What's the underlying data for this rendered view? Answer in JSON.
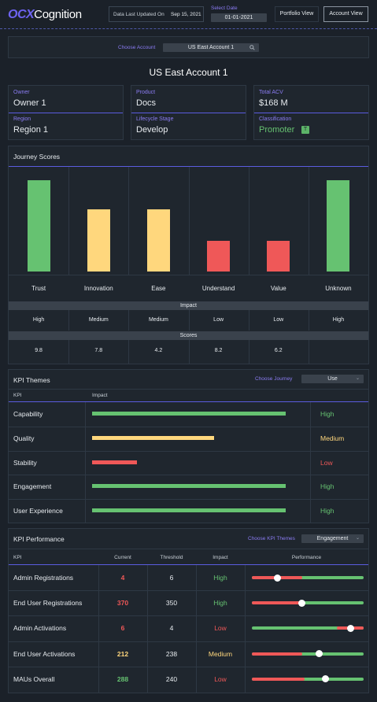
{
  "header": {
    "logo_ocx": "OCX",
    "logo_cognition": "Cognition",
    "last_updated_label": "Data Last Updated On",
    "last_updated_value": "Sep 15, 2021",
    "select_date_label": "Select Date",
    "select_date_value": "01-01-2021",
    "portfolio_view": "Portfolio View",
    "account_view": "Account View"
  },
  "account_chooser": {
    "label": "Choose Account",
    "value": "US East Account 1"
  },
  "account_title": "US East Account 1",
  "info": {
    "owner_label": "Owner",
    "owner_value": "Owner 1",
    "product_label": "Product",
    "product_value": "Docs",
    "acv_label": "Total ACV",
    "acv_value": "$168 M",
    "region_label": "Region",
    "region_value": "Region 1",
    "lifecycle_label": "Lifecycle Stage",
    "lifecycle_value": "Develop",
    "classification_label": "Classification",
    "classification_value": "Promoter",
    "classification_badge": "T"
  },
  "journey": {
    "title": "Journey Scores",
    "impact_header": "Impact",
    "scores_header": "Scores"
  },
  "chart_data": {
    "type": "bar",
    "categories": [
      "Trust",
      "Innovation",
      "Ease",
      "Understand",
      "Value",
      "Unknown"
    ],
    "values": [
      9.8,
      7.8,
      4.2,
      8.2,
      6.2,
      null
    ],
    "bar_heights_relative": [
      1.0,
      0.68,
      0.68,
      0.34,
      0.34,
      1.0
    ],
    "impact": [
      "High",
      "Medium",
      "Medium",
      "Low",
      "Low",
      "High"
    ],
    "scores": [
      "9.8",
      "7.8",
      "4.2",
      "8.2",
      "6.2",
      ""
    ],
    "colors": [
      "#66c271",
      "#ffd77d",
      "#ffd77d",
      "#ef5858",
      "#ef5858",
      "#66c271"
    ]
  },
  "kpi_themes": {
    "title": "KPI Themes",
    "choose_label": "Choose Journey",
    "choose_value": "Use",
    "col_kpi": "KPI",
    "col_impact": "Impact",
    "rows": [
      {
        "name": "Capability",
        "level": 1.0,
        "impact": "High",
        "color": "#66c271"
      },
      {
        "name": "Quality",
        "level": 0.63,
        "impact": "Medium",
        "color": "#ffd77d"
      },
      {
        "name": "Stability",
        "level": 0.23,
        "impact": "Low",
        "color": "#ef5858"
      },
      {
        "name": "Engagement",
        "level": 1.0,
        "impact": "High",
        "color": "#66c271"
      },
      {
        "name": "User Experience",
        "level": 1.0,
        "impact": "High",
        "color": "#66c271"
      }
    ]
  },
  "kpi_performance": {
    "title": "KPI Performance",
    "choose_label": "Choose KPI Themes",
    "choose_value": "Engagement",
    "col_kpi": "KPI",
    "col_current": "Current",
    "col_threshold": "Threshold",
    "col_impact": "Impact",
    "col_performance": "Performance",
    "rows": [
      {
        "name": "Admin Registrations",
        "current": "4",
        "current_color": "#ef5858",
        "threshold": "6",
        "impact": "High",
        "impact_color": "#66c271",
        "red_start": 0.0,
        "red_end": 0.45,
        "knob": 0.23
      },
      {
        "name": "End User Registrations",
        "current": "370",
        "current_color": "#ef5858",
        "threshold": "350",
        "impact": "High",
        "impact_color": "#66c271",
        "red_start": 0.0,
        "red_end": 0.45,
        "knob": 0.45
      },
      {
        "name": "Admin Activations",
        "current": "6",
        "current_color": "#ef5858",
        "threshold": "4",
        "impact": "Low",
        "impact_color": "#ef5858",
        "red_start": 0.76,
        "red_end": 1.0,
        "knob": 0.88
      },
      {
        "name": "End User Activations",
        "current": "212",
        "current_color": "#ffd77d",
        "threshold": "238",
        "impact": "Medium",
        "impact_color": "#ffd77d",
        "red_start": 0.0,
        "red_end": 0.45,
        "knob": 0.6
      },
      {
        "name": "MAUs Overall",
        "current": "288",
        "current_color": "#66c271",
        "threshold": "240",
        "impact": "Low",
        "impact_color": "#ef5858",
        "red_start": 0.0,
        "red_end": 0.47,
        "knob": 0.66
      }
    ]
  }
}
